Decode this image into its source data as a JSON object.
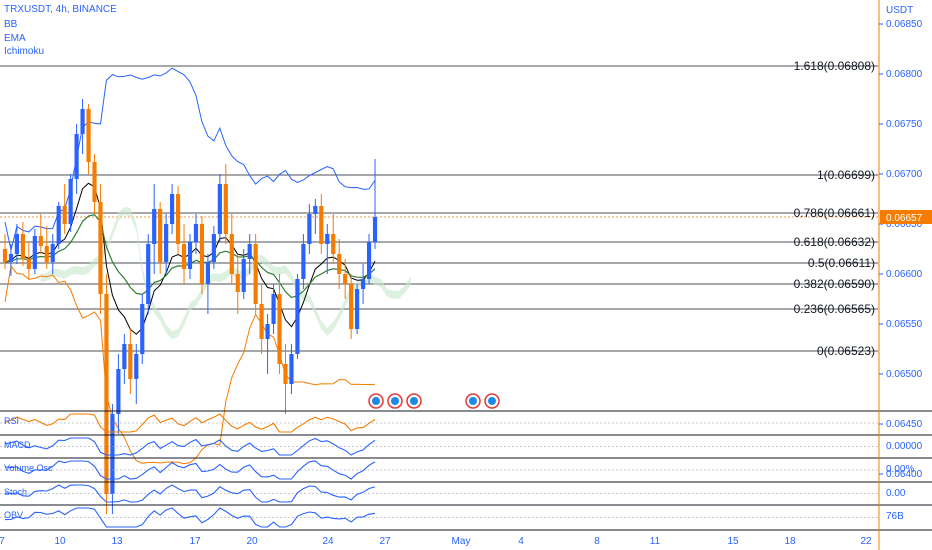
{
  "symbol_title": "TRXUSDT, 4h, BINANCE",
  "indicators": [
    "BB",
    "EMA",
    "Ichimoku"
  ],
  "currency": "USDT",
  "current_price_label": "0.06657",
  "colors": {
    "up": "#2962ff",
    "down": "#f57c00",
    "bb": "#2962ff",
    "bb_lower": "#f57c00",
    "ema_black": "#000000",
    "ema_green": "#2e7d32",
    "cloud_green": "#c8e6c9",
    "cloud_red": "#ffcdd2",
    "axis": "#2962ff",
    "rsi": "#f57c00",
    "macd": "#2962ff",
    "signal": "#f57c00"
  },
  "chart_data": {
    "type": "candlestick",
    "title": "TRXUSDT, 4h, BINANCE",
    "y_ticks": [
      "0.06850",
      "0.06800",
      "0.06750",
      "0.06700",
      "0.06650",
      "0.06600",
      "0.06550",
      "0.06500",
      "0.06450",
      "0.06400"
    ],
    "ylim": [
      0.0636,
      0.0686
    ],
    "x_ticks": [
      "7",
      "10",
      "13",
      "17",
      "20",
      "24",
      "27",
      "May",
      "4",
      "8",
      "11",
      "15",
      "18",
      "22"
    ],
    "fib_levels": [
      {
        "label": "1.618(0.06808)",
        "value": 0.06808
      },
      {
        "label": "1(0.06699)",
        "value": 0.06699
      },
      {
        "label": "0.786(0.06661)",
        "value": 0.06661
      },
      {
        "label": "0.618(0.06632)",
        "value": 0.06632
      },
      {
        "label": "0.5(0.06611)",
        "value": 0.06611
      },
      {
        "label": "0.382(0.06590)",
        "value": 0.0659
      },
      {
        "label": "0.236(0.06565)",
        "value": 0.06565
      },
      {
        "label": "0(0.06523)",
        "value": 0.06523
      }
    ],
    "current_price": 0.06657,
    "panes": [
      {
        "name": "RSI",
        "value_label": ""
      },
      {
        "name": "MACD",
        "value_label": "0.00000"
      },
      {
        "name": "Volume Osc",
        "value_label": "0.00%"
      },
      {
        "name": "Stoch",
        "value_label": "0.00"
      },
      {
        "name": "OBV",
        "value_label": "76B"
      }
    ],
    "candles": [
      [
        0.06625,
        0.0664,
        0.06605,
        0.06612
      ],
      [
        0.06612,
        0.0663,
        0.06598,
        0.0662
      ],
      [
        0.0662,
        0.0665,
        0.0661,
        0.0664
      ],
      [
        0.0664,
        0.06652,
        0.06608,
        0.06615
      ],
      [
        0.06615,
        0.06632,
        0.06595,
        0.06605
      ],
      [
        0.06605,
        0.06645,
        0.066,
        0.06638
      ],
      [
        0.06638,
        0.0666,
        0.0662,
        0.06628
      ],
      [
        0.06628,
        0.06648,
        0.06605,
        0.06612
      ],
      [
        0.06612,
        0.0664,
        0.066,
        0.0663
      ],
      [
        0.0663,
        0.06672,
        0.06625,
        0.06668
      ],
      [
        0.06668,
        0.0669,
        0.0664,
        0.0665
      ],
      [
        0.0665,
        0.067,
        0.06642,
        0.06695
      ],
      [
        0.06695,
        0.0675,
        0.0668,
        0.0674
      ],
      [
        0.0674,
        0.06775,
        0.0672,
        0.06765
      ],
      [
        0.06765,
        0.0677,
        0.067,
        0.06712
      ],
      [
        0.06712,
        0.0672,
        0.0666,
        0.06672
      ],
      [
        0.06672,
        0.0669,
        0.0656,
        0.0658
      ],
      [
        0.0658,
        0.066,
        0.0636,
        0.0638
      ],
      [
        0.0638,
        0.0647,
        0.0636,
        0.0646
      ],
      [
        0.0646,
        0.0652,
        0.0644,
        0.06505
      ],
      [
        0.06505,
        0.0654,
        0.0649,
        0.0653
      ],
      [
        0.0653,
        0.06545,
        0.0648,
        0.06495
      ],
      [
        0.06495,
        0.0653,
        0.0647,
        0.0652
      ],
      [
        0.0652,
        0.0658,
        0.0651,
        0.0657
      ],
      [
        0.0657,
        0.0664,
        0.0656,
        0.0663
      ],
      [
        0.0663,
        0.0669,
        0.066,
        0.06665
      ],
      [
        0.06665,
        0.06672,
        0.066,
        0.06612
      ],
      [
        0.06612,
        0.0666,
        0.066,
        0.0665
      ],
      [
        0.0665,
        0.0669,
        0.0664,
        0.0668
      ],
      [
        0.0668,
        0.06688,
        0.0662,
        0.0663
      ],
      [
        0.0663,
        0.0665,
        0.0659,
        0.06605
      ],
      [
        0.06605,
        0.0664,
        0.06595,
        0.06632
      ],
      [
        0.06632,
        0.0666,
        0.0662,
        0.0665
      ],
      [
        0.0665,
        0.06658,
        0.0658,
        0.0659
      ],
      [
        0.0659,
        0.0662,
        0.0656,
        0.06612
      ],
      [
        0.06612,
        0.06648,
        0.06605,
        0.0664
      ],
      [
        0.0664,
        0.067,
        0.06632,
        0.0669
      ],
      [
        0.0669,
        0.0671,
        0.0663,
        0.0664
      ],
      [
        0.0664,
        0.0666,
        0.0659,
        0.066
      ],
      [
        0.066,
        0.0662,
        0.0656,
        0.06582
      ],
      [
        0.06582,
        0.06625,
        0.06575,
        0.06615
      ],
      [
        0.06615,
        0.0664,
        0.066,
        0.0663
      ],
      [
        0.0663,
        0.0664,
        0.0656,
        0.0657
      ],
      [
        0.0657,
        0.0659,
        0.0652,
        0.06535
      ],
      [
        0.06535,
        0.0656,
        0.065,
        0.0655
      ],
      [
        0.0655,
        0.0659,
        0.0654,
        0.0658
      ],
      [
        0.0658,
        0.066,
        0.065,
        0.0651
      ],
      [
        0.0651,
        0.0653,
        0.0646,
        0.0649
      ],
      [
        0.0649,
        0.0653,
        0.0648,
        0.0652
      ],
      [
        0.0652,
        0.066,
        0.06515,
        0.06595
      ],
      [
        0.06595,
        0.0664,
        0.06585,
        0.0663
      ],
      [
        0.0663,
        0.0667,
        0.0662,
        0.0666
      ],
      [
        0.0666,
        0.06675,
        0.0664,
        0.06668
      ],
      [
        0.06668,
        0.0668,
        0.0662,
        0.0663
      ],
      [
        0.0663,
        0.0665,
        0.066,
        0.0664
      ],
      [
        0.0664,
        0.0666,
        0.0661,
        0.0662
      ],
      [
        0.0662,
        0.06635,
        0.06585,
        0.066
      ],
      [
        0.066,
        0.06615,
        0.06575,
        0.0659
      ],
      [
        0.0659,
        0.066,
        0.06535,
        0.06545
      ],
      [
        0.06545,
        0.0659,
        0.0654,
        0.06585
      ],
      [
        0.06585,
        0.0661,
        0.0657,
        0.06595
      ],
      [
        0.06595,
        0.0664,
        0.0659,
        0.06632
      ],
      [
        0.06632,
        0.06715,
        0.06625,
        0.06657
      ]
    ]
  }
}
